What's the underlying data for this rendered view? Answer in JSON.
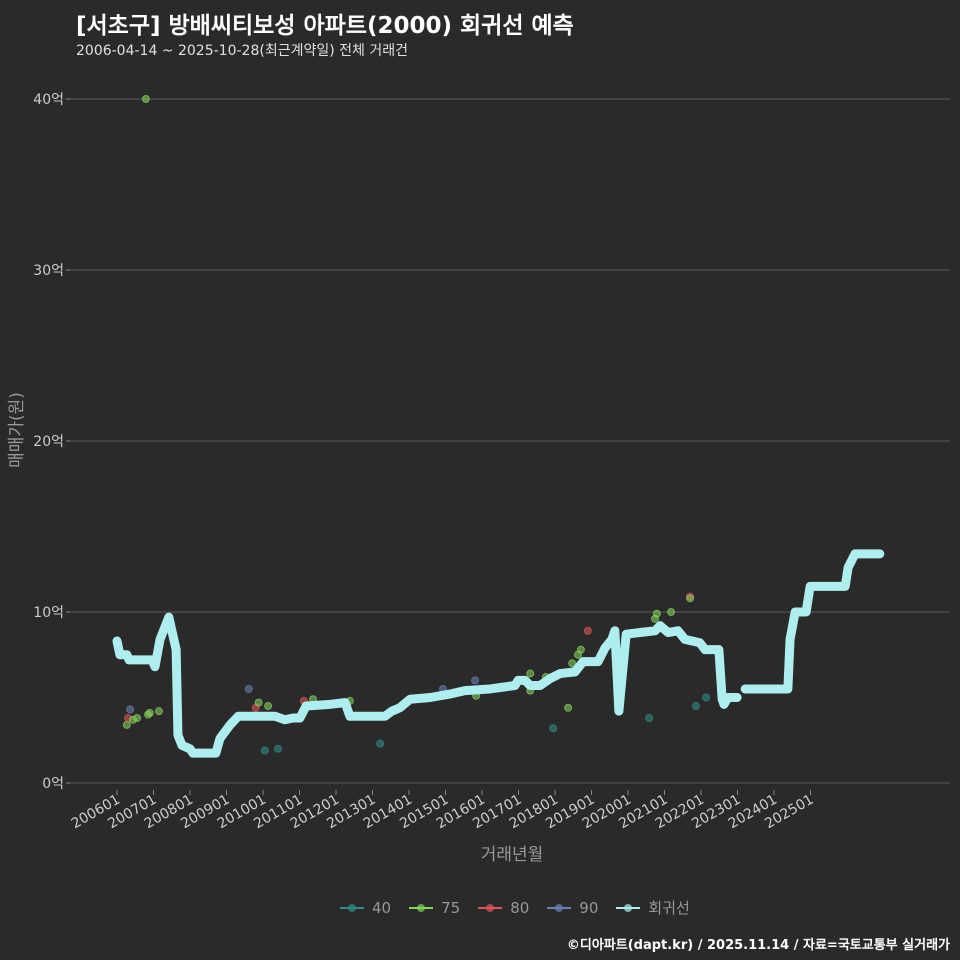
{
  "header": {
    "title": "[서초구] 방배씨티보성 아파트(2000) 회귀선 예측",
    "subtitle": "2006-04-14 ~ 2025-10-28(최근계약일) 전체 거래건"
  },
  "footer": "©디아파트(dapt.kr) / 2025.11.14 / 자료=국토교통부 실거래가",
  "chart_data": {
    "type": "scatter",
    "title": "[서초구] 방배씨티보성 아파트(2000) 회귀선 예측",
    "xlabel": "거래년월",
    "ylabel": "매매가(원)",
    "xlim": [
      2005.5,
      2028.0
    ],
    "ylim": [
      -0.5,
      42
    ],
    "x_ticks": [
      "200601",
      "200701",
      "200801",
      "200901",
      "201001",
      "201101",
      "201201",
      "201301",
      "201401",
      "201501",
      "201601",
      "201701",
      "201801",
      "201901",
      "202001",
      "202101",
      "202201",
      "202301",
      "202401",
      "202501"
    ],
    "y_ticks": [
      {
        "value": 0,
        "label": "0억"
      },
      {
        "value": 10,
        "label": "10억"
      },
      {
        "value": 20,
        "label": "20억"
      },
      {
        "value": 30,
        "label": "30억"
      },
      {
        "value": 40,
        "label": "40억"
      }
    ],
    "colors": {
      "40": "#2f8f88",
      "75": "#86d45c",
      "80": "#e0575a",
      "90": "#6b82b8",
      "회귀선": "#aeeeee"
    },
    "legend": [
      "40",
      "75",
      "80",
      "90",
      "회귀선"
    ],
    "legend_position": "bottom",
    "points": [
      {
        "s": "75",
        "x": 2006.79,
        "y": 40.0
      },
      {
        "s": "75",
        "x": 2006.27,
        "y": 3.4
      },
      {
        "s": "80",
        "x": 2006.3,
        "y": 3.8
      },
      {
        "s": "90",
        "x": 2006.36,
        "y": 4.3
      },
      {
        "s": "75",
        "x": 2006.44,
        "y": 3.7
      },
      {
        "s": "75",
        "x": 2006.55,
        "y": 3.8
      },
      {
        "s": "75",
        "x": 2006.85,
        "y": 4.0
      },
      {
        "s": "75",
        "x": 2006.9,
        "y": 4.1
      },
      {
        "s": "75",
        "x": 2007.15,
        "y": 4.2
      },
      {
        "s": "90",
        "x": 2009.61,
        "y": 5.5
      },
      {
        "s": "80",
        "x": 2009.8,
        "y": 4.4
      },
      {
        "s": "75",
        "x": 2009.88,
        "y": 4.7
      },
      {
        "s": "75",
        "x": 2010.14,
        "y": 4.5
      },
      {
        "s": "40",
        "x": 2010.05,
        "y": 1.9
      },
      {
        "s": "40",
        "x": 2010.41,
        "y": 2.0
      },
      {
        "s": "80",
        "x": 2011.12,
        "y": 4.8
      },
      {
        "s": "75",
        "x": 2011.37,
        "y": 4.9
      },
      {
        "s": "75",
        "x": 2012.38,
        "y": 4.8
      },
      {
        "s": "40",
        "x": 2013.21,
        "y": 2.3
      },
      {
        "s": "90",
        "x": 2014.93,
        "y": 5.5
      },
      {
        "s": "90",
        "x": 2015.81,
        "y": 6.0
      },
      {
        "s": "75",
        "x": 2015.84,
        "y": 5.1
      },
      {
        "s": "75",
        "x": 2017.32,
        "y": 6.4
      },
      {
        "s": "75",
        "x": 2017.32,
        "y": 5.4
      },
      {
        "s": "75",
        "x": 2017.75,
        "y": 6.2
      },
      {
        "s": "40",
        "x": 2017.95,
        "y": 3.2
      },
      {
        "s": "75",
        "x": 2018.36,
        "y": 4.4
      },
      {
        "s": "75",
        "x": 2018.47,
        "y": 7.0
      },
      {
        "s": "75",
        "x": 2018.63,
        "y": 7.5
      },
      {
        "s": "75",
        "x": 2018.71,
        "y": 7.8
      },
      {
        "s": "80",
        "x": 2018.9,
        "y": 8.9
      },
      {
        "s": "40",
        "x": 2020.58,
        "y": 3.8
      },
      {
        "s": "75",
        "x": 2020.74,
        "y": 9.6
      },
      {
        "s": "75",
        "x": 2020.79,
        "y": 9.9
      },
      {
        "s": "75",
        "x": 2021.18,
        "y": 10.0
      },
      {
        "s": "80",
        "x": 2021.7,
        "y": 10.9
      },
      {
        "s": "75",
        "x": 2021.7,
        "y": 10.8
      },
      {
        "s": "40",
        "x": 2021.86,
        "y": 4.5
      },
      {
        "s": "40",
        "x": 2022.14,
        "y": 5.0
      }
    ],
    "regression": [
      [
        [
          2006.0,
          8.3
        ],
        [
          2006.08,
          7.5
        ],
        [
          2006.27,
          7.5
        ],
        [
          2006.33,
          7.2
        ],
        [
          2006.96,
          7.2
        ],
        [
          2007.04,
          6.8
        ],
        [
          2007.18,
          8.4
        ],
        [
          2007.42,
          9.7
        ],
        [
          2007.62,
          7.8
        ],
        [
          2007.67,
          2.8
        ],
        [
          2007.78,
          2.2
        ],
        [
          2008.0,
          2.0
        ],
        [
          2008.08,
          1.75
        ],
        [
          2008.71,
          1.75
        ],
        [
          2008.82,
          2.6
        ],
        [
          2009.1,
          3.4
        ],
        [
          2009.32,
          3.9
        ],
        [
          2010.33,
          3.9
        ],
        [
          2010.6,
          3.7
        ],
        [
          2010.82,
          3.8
        ],
        [
          2011.01,
          3.8
        ],
        [
          2011.18,
          4.5
        ],
        [
          2011.84,
          4.6
        ],
        [
          2012.25,
          4.7
        ],
        [
          2012.38,
          3.9
        ],
        [
          2013.07,
          3.9
        ],
        [
          2013.34,
          3.9
        ],
        [
          2013.53,
          4.2
        ],
        [
          2013.75,
          4.4
        ],
        [
          2014.03,
          4.9
        ],
        [
          2014.58,
          5.0
        ],
        [
          2015.12,
          5.2
        ],
        [
          2015.53,
          5.4
        ],
        [
          2016.22,
          5.5
        ],
        [
          2016.9,
          5.7
        ],
        [
          2016.99,
          6.0
        ],
        [
          2017.18,
          6.0
        ],
        [
          2017.32,
          5.7
        ],
        [
          2017.59,
          5.7
        ],
        [
          2017.86,
          6.1
        ],
        [
          2018.14,
          6.4
        ],
        [
          2018.55,
          6.5
        ],
        [
          2018.77,
          7.1
        ],
        [
          2019.18,
          7.1
        ],
        [
          2019.37,
          7.9
        ],
        [
          2019.56,
          8.4
        ],
        [
          2019.64,
          8.9
        ],
        [
          2019.75,
          4.2
        ],
        [
          2019.95,
          8.7
        ],
        [
          2020.33,
          8.8
        ],
        [
          2020.74,
          8.9
        ],
        [
          2020.88,
          9.2
        ],
        [
          2021.1,
          8.8
        ],
        [
          2021.37,
          8.9
        ],
        [
          2021.56,
          8.4
        ],
        [
          2021.97,
          8.2
        ],
        [
          2022.11,
          7.8
        ],
        [
          2022.49,
          7.8
        ],
        [
          2022.58,
          4.9
        ],
        [
          2022.63,
          4.6
        ],
        [
          2022.74,
          5.0
        ],
        [
          2022.99,
          5.0
        ]
      ],
      [
        [
          2023.21,
          5.5
        ],
        [
          2024.38,
          5.5
        ],
        [
          2024.44,
          8.4
        ],
        [
          2024.58,
          10.0
        ],
        [
          2024.88,
          10.0
        ],
        [
          2024.99,
          11.5
        ],
        [
          2025.95,
          11.5
        ],
        [
          2026.03,
          12.6
        ],
        [
          2026.22,
          13.4
        ],
        [
          2026.9,
          13.4
        ]
      ]
    ]
  }
}
